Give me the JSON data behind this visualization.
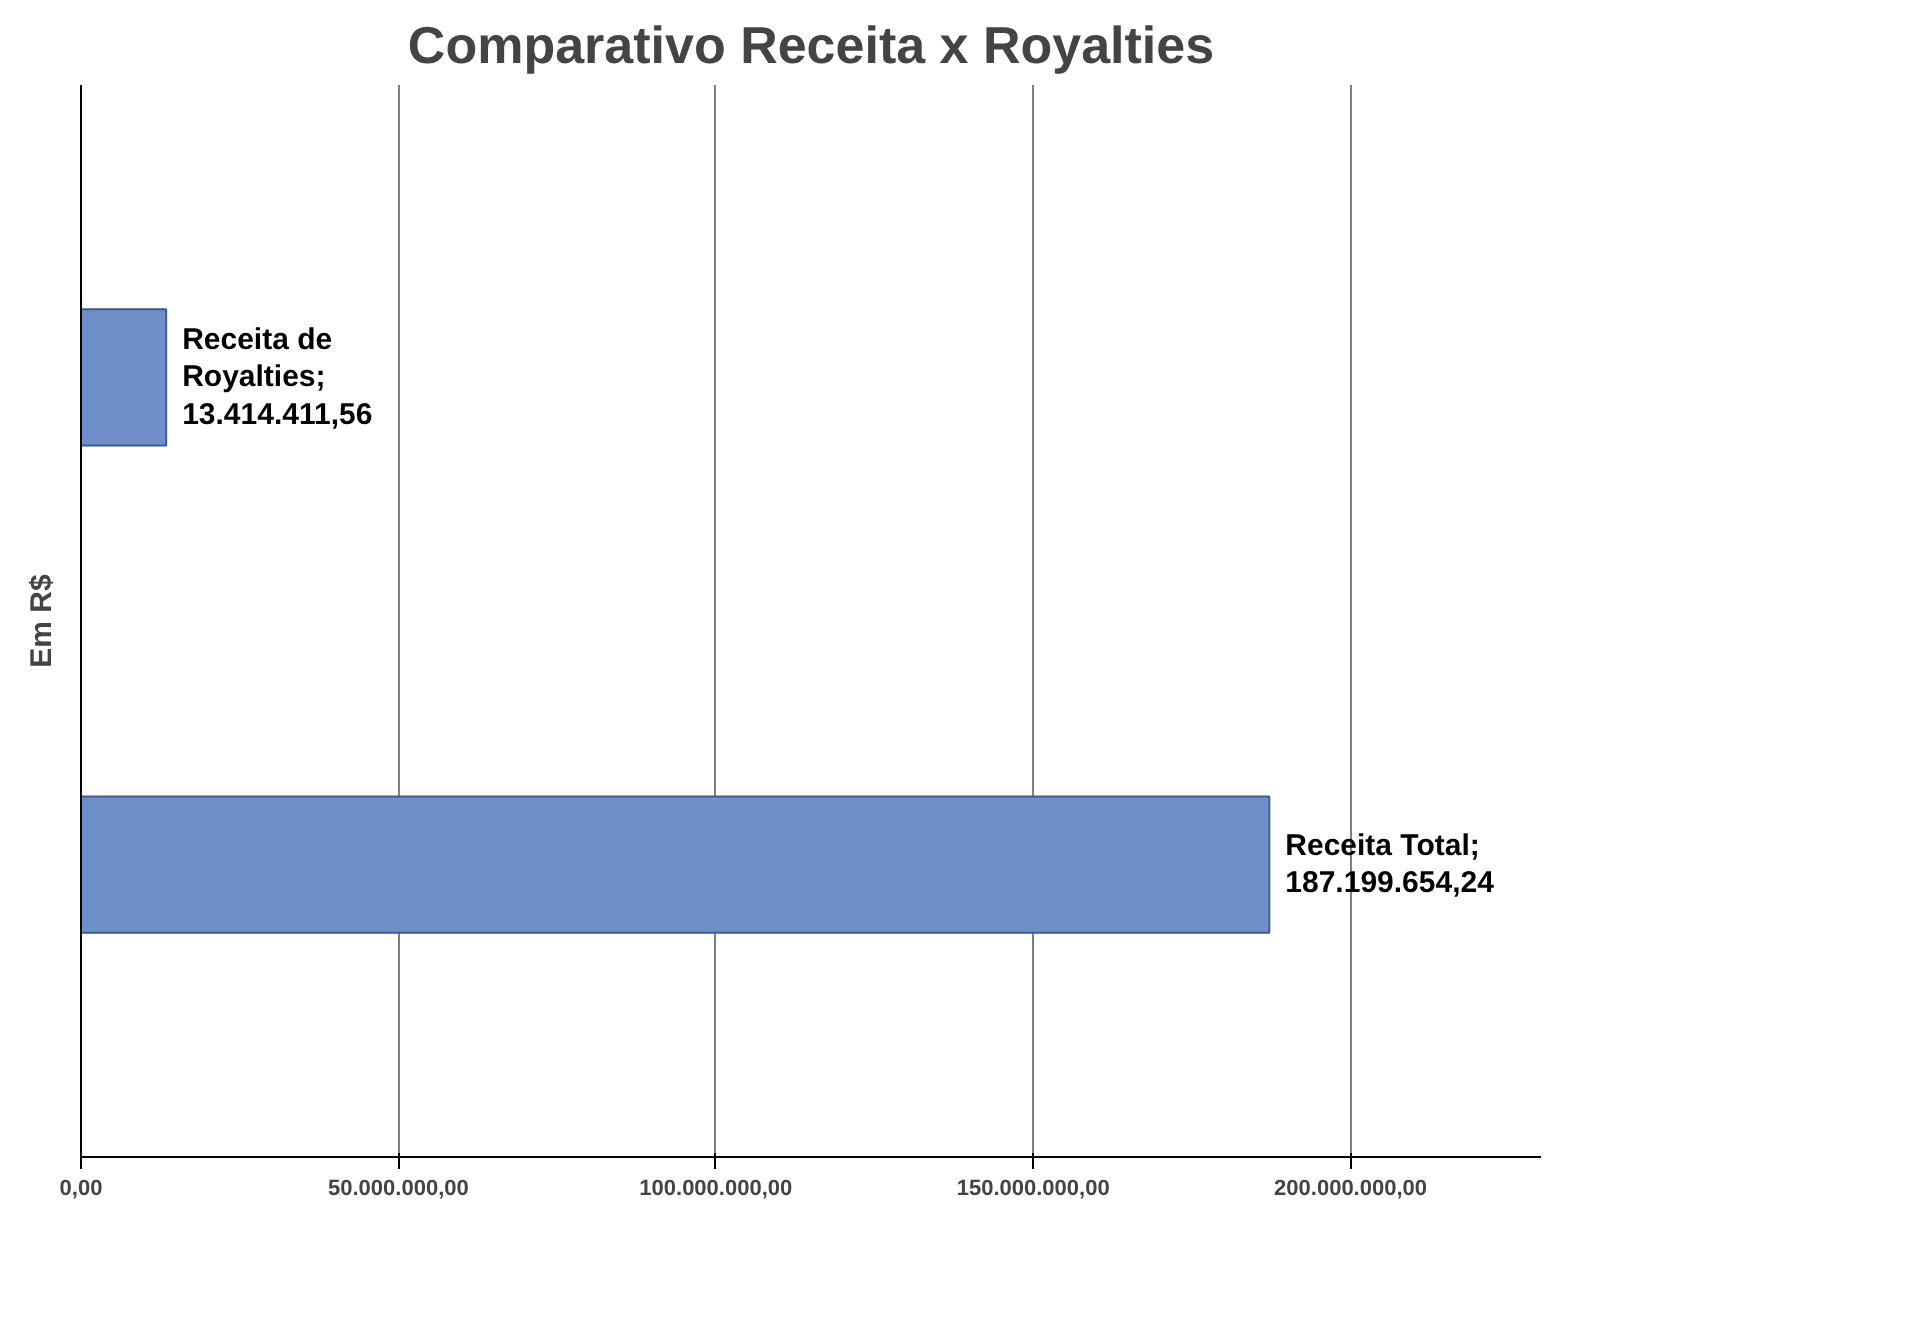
{
  "chart_data": {
    "type": "bar",
    "orientation": "horizontal",
    "title": "Comparativo Receita x Royalties",
    "ylabel": "Em R$",
    "categories": [
      null,
      null
    ],
    "values": [
      13414411.56,
      187199654.24
    ],
    "value_labels": [
      "Receita de\nRoyalties;\n13.414.411,56",
      "Receita Total;\n187.199.654,24"
    ],
    "color": "#6f8fc8",
    "xlim": [
      0,
      230000000
    ],
    "xticks": [
      {
        "value": 0,
        "label": "0,00"
      },
      {
        "value": 50000000,
        "label": "50.000.000,00"
      },
      {
        "value": 100000000,
        "label": "100.000.000,00"
      },
      {
        "value": 150000000,
        "label": "150.000.000,00"
      },
      {
        "value": 200000000,
        "label": "200.000.000,00"
      }
    ],
    "tick_labels": "x",
    "grid": "x"
  }
}
